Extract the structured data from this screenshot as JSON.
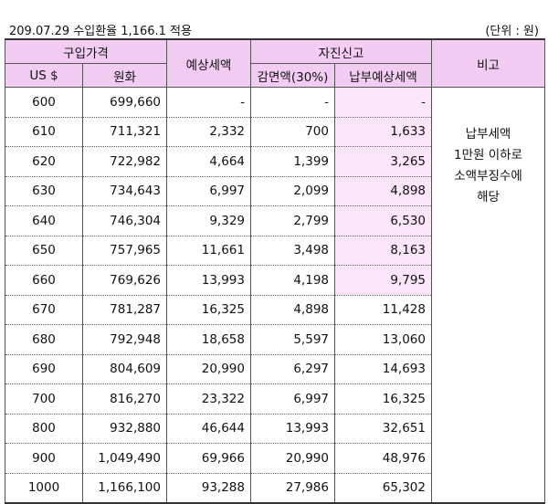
{
  "header": {
    "rate_text": "209.07.29 수입환율 1,166.1 적용",
    "unit_text": "(단위 : 원)"
  },
  "columns": {
    "purchase_price": "구입가격",
    "usd": "US $",
    "krw": "원화",
    "expected_tax": "예상세액",
    "self_report": "자진신고",
    "reduction": "감면액(30%)",
    "payment_expected": "납부예상세액",
    "remarks": "비고"
  },
  "rows": [
    {
      "usd": "600",
      "krw": "699,660",
      "tax": "-",
      "reduction": "-",
      "payment": "-",
      "highlight": true
    },
    {
      "usd": "610",
      "krw": "711,321",
      "tax": "2,332",
      "reduction": "700",
      "payment": "1,633",
      "highlight": true
    },
    {
      "usd": "620",
      "krw": "722,982",
      "tax": "4,664",
      "reduction": "1,399",
      "payment": "3,265",
      "highlight": true
    },
    {
      "usd": "630",
      "krw": "734,643",
      "tax": "6,997",
      "reduction": "2,099",
      "payment": "4,898",
      "highlight": true
    },
    {
      "usd": "640",
      "krw": "746,304",
      "tax": "9,329",
      "reduction": "2,799",
      "payment": "6,530",
      "highlight": true
    },
    {
      "usd": "650",
      "krw": "757,965",
      "tax": "11,661",
      "reduction": "3,498",
      "payment": "8,163",
      "highlight": true
    },
    {
      "usd": "660",
      "krw": "769,626",
      "tax": "13,993",
      "reduction": "4,198",
      "payment": "9,795",
      "highlight": true
    },
    {
      "usd": "670",
      "krw": "781,287",
      "tax": "16,325",
      "reduction": "4,898",
      "payment": "11,428",
      "highlight": false
    },
    {
      "usd": "680",
      "krw": "792,948",
      "tax": "18,658",
      "reduction": "5,597",
      "payment": "13,060",
      "highlight": false
    },
    {
      "usd": "690",
      "krw": "804,609",
      "tax": "20,990",
      "reduction": "6,297",
      "payment": "14,693",
      "highlight": false
    },
    {
      "usd": "700",
      "krw": "816,270",
      "tax": "23,322",
      "reduction": "6,997",
      "payment": "16,325",
      "highlight": false
    },
    {
      "usd": "800",
      "krw": "932,880",
      "tax": "46,644",
      "reduction": "13,993",
      "payment": "32,651",
      "highlight": false
    },
    {
      "usd": "900",
      "krw": "1,049,490",
      "tax": "69,966",
      "reduction": "20,990",
      "payment": "48,976",
      "highlight": false
    },
    {
      "usd": "1000",
      "krw": "1,166,100",
      "tax": "93,288",
      "reduction": "27,986",
      "payment": "65,302",
      "highlight": false
    }
  ],
  "remarks_note": [
    "납부세액",
    "1만원 이하로",
    "소액부징수에",
    "해당"
  ],
  "colors": {
    "header_bg": "#f2ccf2",
    "highlight_bg": "#fde6fb"
  }
}
